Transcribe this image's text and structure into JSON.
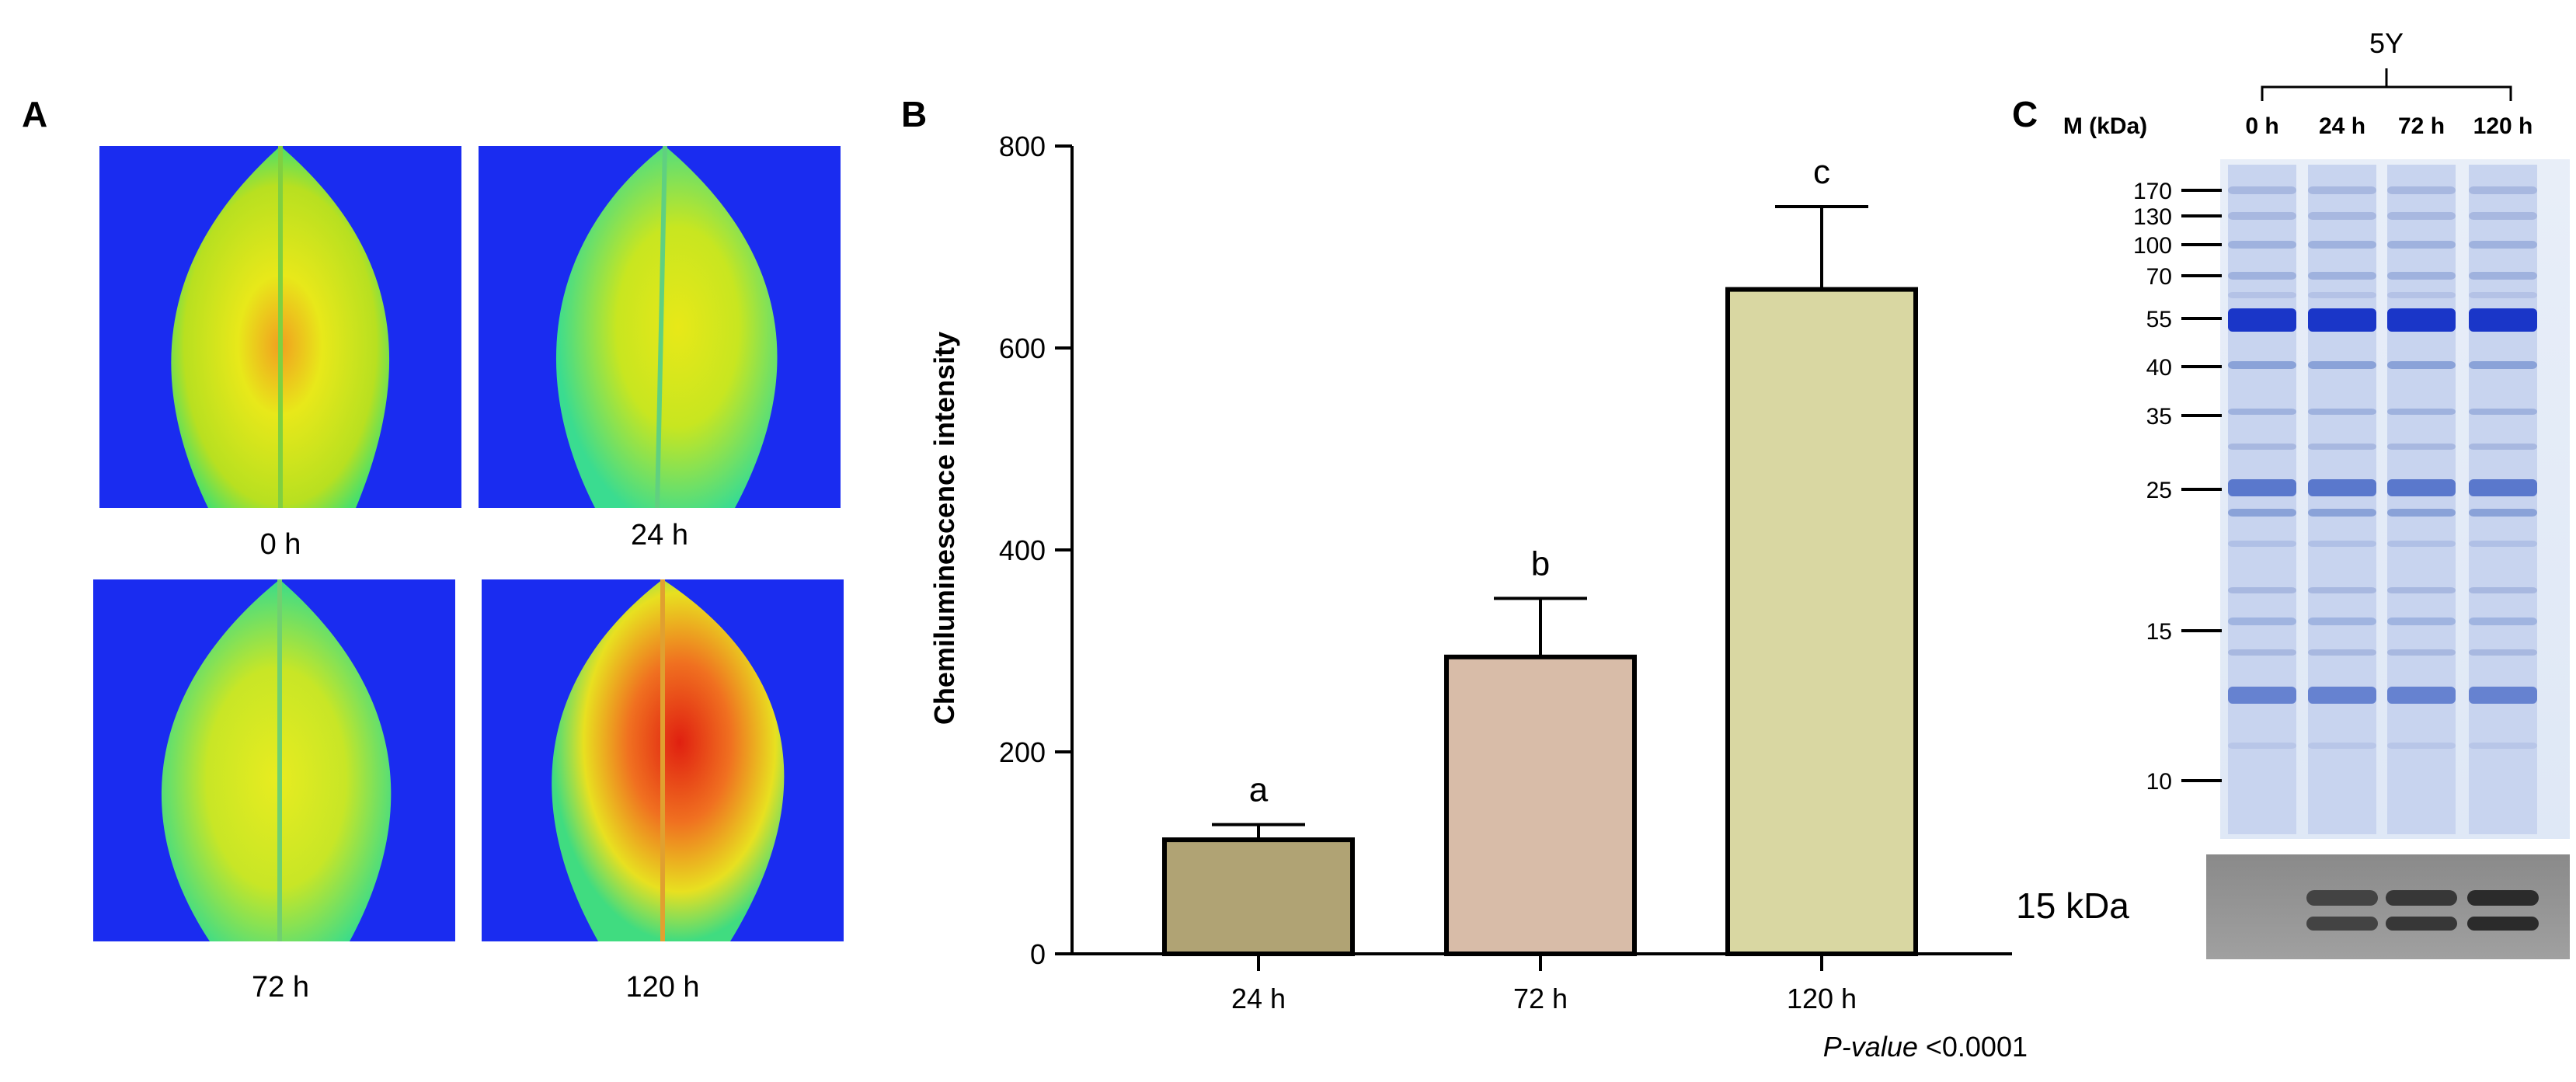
{
  "panels": {
    "a": {
      "letter": "A",
      "captions": [
        "0 h",
        "24 h",
        "72 h",
        "120 h"
      ]
    },
    "b": {
      "letter": "B"
    },
    "c": {
      "letter": "C",
      "group_label": "5Y",
      "marker_header": "M (kDa)",
      "lanes": [
        "0 h",
        "24 h",
        "72 h",
        "120 h"
      ],
      "markers": [
        "170",
        "130",
        "100",
        "70",
        "55",
        "40",
        "35",
        "25",
        "15",
        "10"
      ],
      "blot_label": "15 kDa"
    }
  },
  "chart_data": {
    "type": "bar",
    "categories": [
      "24 h",
      "72 h",
      "120 h"
    ],
    "values": [
      113,
      294,
      658
    ],
    "errors": [
      15,
      58,
      82
    ],
    "letters": [
      "a",
      "b",
      "c"
    ],
    "colors": [
      "#b0a374",
      "#d8bca8",
      "#d9d7a2"
    ],
    "ylabel": "Chemiluminescence intensity",
    "xlabel": "",
    "ylim": [
      0,
      800
    ],
    "yticks": [
      0,
      200,
      400,
      600,
      800
    ],
    "pvalue_label": "P-value",
    "pvalue_text": " <0.0001"
  }
}
